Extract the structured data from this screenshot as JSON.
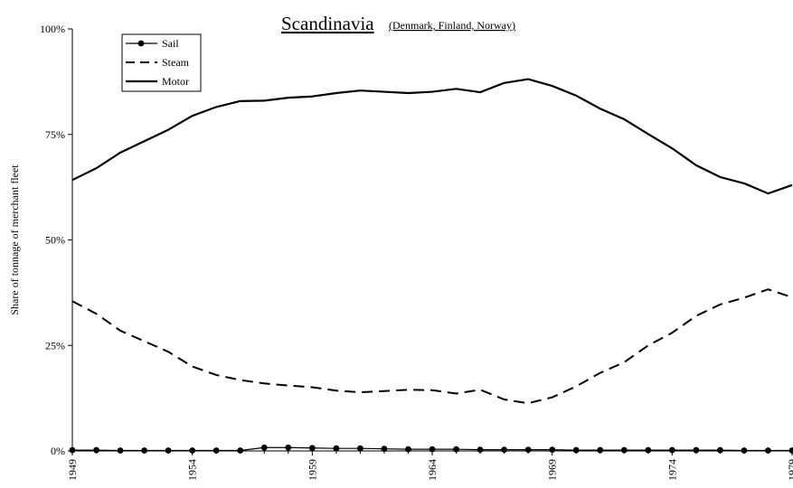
{
  "chart_data": {
    "type": "line",
    "title": "Scandinavia",
    "subtitle": "(Denmark, Finland, Norway)",
    "xlabel": "",
    "ylabel": "Share of tonnage of merchant fleet",
    "xlim": [
      1949,
      1979
    ],
    "ylim": [
      0,
      100
    ],
    "x_ticks": [
      "1949",
      "1954",
      "1959",
      "1964",
      "1969",
      "1974",
      "1979"
    ],
    "y_ticks": [
      "0%",
      "25%",
      "50%",
      "75%",
      "100%"
    ],
    "x": [
      1949,
      1950,
      1951,
      1952,
      1953,
      1954,
      1955,
      1956,
      1957,
      1958,
      1959,
      1960,
      1961,
      1962,
      1963,
      1964,
      1965,
      1966,
      1967,
      1968,
      1969,
      1970,
      1971,
      1972,
      1973,
      1974,
      1975,
      1976,
      1977,
      1978,
      1979
    ],
    "series": [
      {
        "name": "Sail",
        "style": "marker-line",
        "values": [
          0.2,
          0.2,
          0.1,
          0.1,
          0.1,
          0.1,
          0.1,
          0.1,
          0.8,
          0.8,
          0.7,
          0.6,
          0.6,
          0.5,
          0.4,
          0.4,
          0.4,
          0.3,
          0.3,
          0.3,
          0.3,
          0.2,
          0.2,
          0.2,
          0.2,
          0.2,
          0.2,
          0.2,
          0.1,
          0.1,
          0.1
        ]
      },
      {
        "name": "Steam",
        "style": "dashed",
        "values": [
          35.5,
          32.5,
          28.5,
          26,
          23.5,
          20,
          18,
          16.8,
          16,
          15.5,
          15.1,
          14.3,
          13.9,
          14.2,
          14.5,
          14.4,
          13.6,
          14.5,
          12.2,
          11.3,
          12.7,
          15.3,
          18.5,
          21,
          25,
          28,
          32,
          34.7,
          36.3,
          38.3,
          36.4
        ]
      },
      {
        "name": "Motor",
        "style": "solid",
        "values": [
          64.2,
          67,
          70.7,
          73.4,
          76.1,
          79.4,
          81.5,
          82.9,
          83,
          83.7,
          84,
          84.8,
          85.4,
          85.1,
          84.8,
          85.1,
          85.8,
          85,
          87.2,
          88.1,
          86.5,
          84.2,
          81.1,
          78.6,
          75.1,
          71.7,
          67.7,
          64.9,
          63.4,
          61,
          63
        ]
      }
    ],
    "grid": false,
    "legend_position": "top-left"
  }
}
